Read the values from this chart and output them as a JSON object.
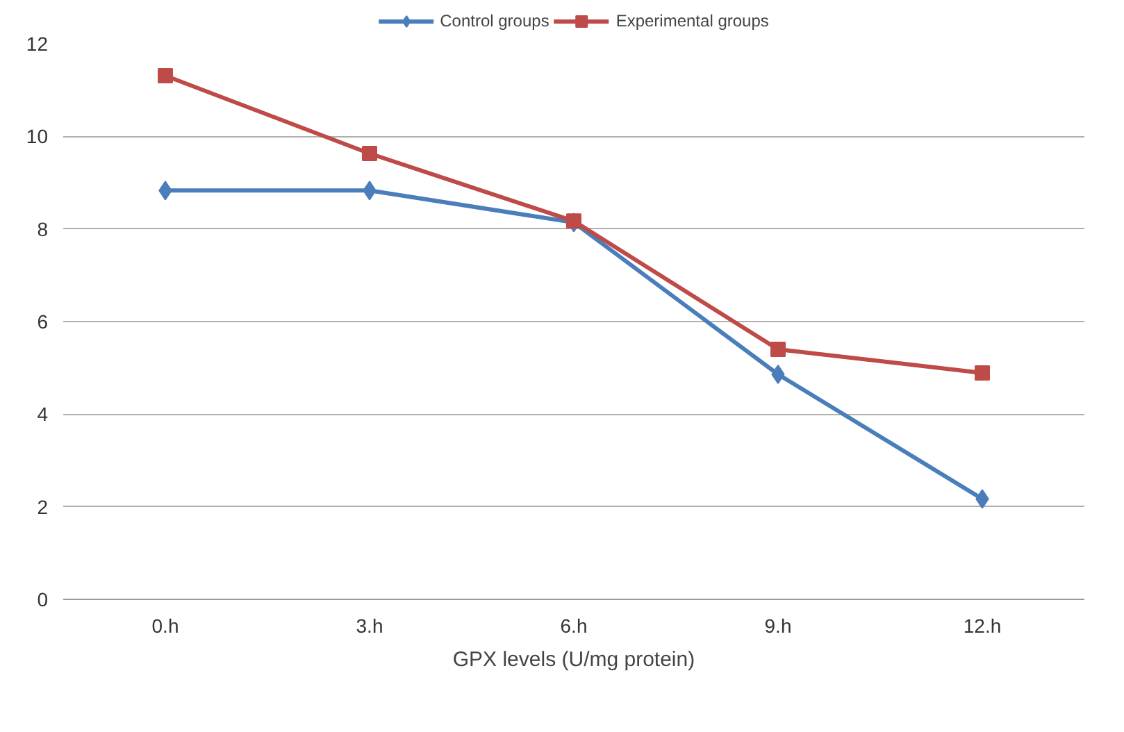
{
  "chart_data": {
    "type": "line",
    "xlabel": "GPX levels (U/mg protein)",
    "categories": [
      "0.h",
      "3.h",
      "6.h",
      "9.h",
      "12.h"
    ],
    "series": [
      {
        "name": "Control groups",
        "color": "#4a7ebb",
        "marker": "diamond",
        "values": [
          8.83,
          8.83,
          8.14,
          4.86,
          2.17
        ]
      },
      {
        "name": "Experimental groups",
        "color": "#be4b48",
        "marker": "square",
        "values": [
          11.31,
          9.63,
          8.17,
          5.4,
          4.89
        ]
      }
    ],
    "ylim": [
      0,
      12
    ],
    "yticks": [
      0,
      2,
      4,
      6,
      8,
      10,
      12
    ],
    "grid": "y",
    "legend": "top",
    "line_style": "solid"
  }
}
